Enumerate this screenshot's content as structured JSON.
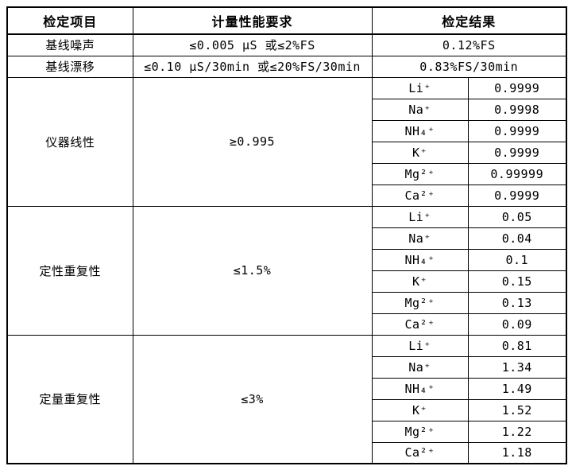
{
  "colors": {
    "background": "#ffffff",
    "border": "#000000",
    "text": "#000000"
  },
  "table": {
    "headers": [
      "检定项目",
      "计量性能要求",
      "检定结果"
    ],
    "simple_rows": [
      {
        "item": "基线噪声",
        "requirement": "≤0.005 μS 或≤2%FS",
        "result": "0.12%FS"
      },
      {
        "item": "基线漂移",
        "requirement": "≤0.10 μS/30min 或≤20%FS/30min",
        "result": "0.83%FS/30min"
      }
    ],
    "ion_sections": [
      {
        "item": "仪器线性",
        "requirement": "≥0.995",
        "rows": [
          [
            "Li⁺",
            "0.9999"
          ],
          [
            "Na⁺",
            "0.9998"
          ],
          [
            "NH₄⁺",
            "0.9999"
          ],
          [
            "K⁺",
            "0.9999"
          ],
          [
            "Mg²⁺",
            "0.99999"
          ],
          [
            "Ca²⁺",
            "0.9999"
          ]
        ]
      },
      {
        "item": "定性重复性",
        "requirement": "≤1.5%",
        "rows": [
          [
            "Li⁺",
            "0.05"
          ],
          [
            "Na⁺",
            "0.04"
          ],
          [
            "NH₄⁺",
            "0.1"
          ],
          [
            "K⁺",
            "0.15"
          ],
          [
            "Mg²⁺",
            "0.13"
          ],
          [
            "Ca²⁺",
            "0.09"
          ]
        ]
      },
      {
        "item": "定量重复性",
        "requirement": "≤3%",
        "rows": [
          [
            "Li⁺",
            "0.81"
          ],
          [
            "Na⁺",
            "1.34"
          ],
          [
            "NH₄⁺",
            "1.49"
          ],
          [
            "K⁺",
            "1.52"
          ],
          [
            "Mg²⁺",
            "1.22"
          ],
          [
            "Ca²⁺",
            "1.18"
          ]
        ]
      }
    ]
  }
}
